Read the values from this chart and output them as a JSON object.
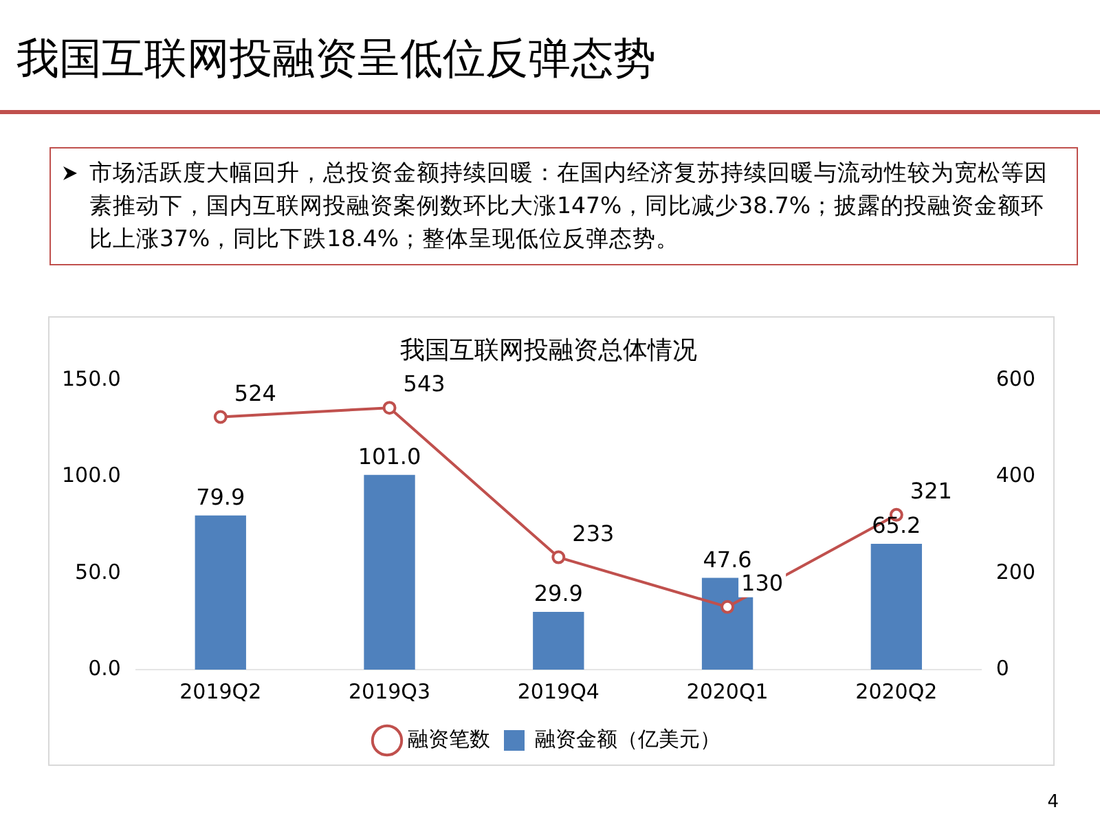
{
  "chart_data": {
    "type": "bar",
    "title": "我国互联网投融资呈低位反弹态势",
    "subtitle": "我国互联网投融资总体情况",
    "annotations": [
      "市场活跃度大幅回升，总投资金额持续回暖：在国内经济复苏持续回暖与流动性较为宽松等因素推动下，国内互联网投融资案例数环比大涨147%，同比减少38.7%；披露的投融资金额环比上涨37%，同比下跌18.4%；整体呈现低位反弹态势。",
      "4"
    ],
    "categories": [
      "2019Q2",
      "2019Q3",
      "2019Q4",
      "2020Q1",
      "2020Q2"
    ],
    "series": [
      {
        "name": "融资金额（亿美元）",
        "color": "#4f81bd",
        "values": [
          79.9,
          101.0,
          29.9,
          47.6,
          65.2
        ],
        "value_labels": [
          "79.9",
          "101.0",
          "29.9",
          "47.6",
          "65.2"
        ]
      },
      {
        "name": "融资笔数",
        "type": "line",
        "axis": "y2",
        "color": "#c0504d",
        "values": [
          524,
          543,
          233,
          130,
          321
        ],
        "value_labels": [
          "524",
          "543",
          "233",
          "130",
          "321"
        ]
      }
    ],
    "ylim": [
      0,
      150
    ],
    "yticks": [
      {
        "value": 0,
        "label": "0.0"
      },
      {
        "value": 50,
        "label": "50.0"
      },
      {
        "value": 100,
        "label": "100.0"
      },
      {
        "value": 150,
        "label": "150.0"
      }
    ],
    "y2lim": [
      0,
      600
    ],
    "y2ticks": [
      0,
      200,
      400,
      600
    ],
    "marker": "circle",
    "legend": "bottom"
  }
}
